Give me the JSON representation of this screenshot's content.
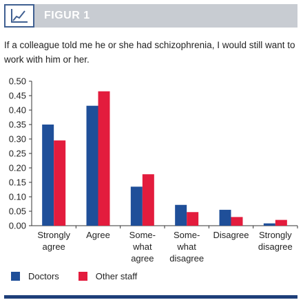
{
  "header": {
    "label": "FIGUR 1",
    "logo_icon": "line-chart-icon"
  },
  "caption": "If a colleague told me he or she had schizophrenia, I would still want to work with him or her.",
  "colors": {
    "doctors": "#1f4f99",
    "other_staff": "#e31c3d",
    "header_bar": "#c8ccd2",
    "rule": "#1e3f7a"
  },
  "chart_data": {
    "type": "bar",
    "categories": [
      [
        "Strongly",
        "agree"
      ],
      [
        "Agree"
      ],
      [
        "Some-",
        "what",
        "agree"
      ],
      [
        "Some-",
        "what",
        "disagree"
      ],
      [
        "Disagree"
      ],
      [
        "Strongly",
        "disagree"
      ]
    ],
    "series": [
      {
        "name": "Doctors",
        "values": [
          0.35,
          0.415,
          0.135,
          0.072,
          0.055,
          0.008
        ]
      },
      {
        "name": "Other staff",
        "values": [
          0.295,
          0.465,
          0.178,
          0.047,
          0.03,
          0.02
        ]
      }
    ],
    "ylim": [
      0,
      0.5
    ],
    "yticks": [
      "0.00",
      "0.05",
      "0.10",
      "0.15",
      "0.20",
      "0.25",
      "0.30",
      "0.35",
      "0.40",
      "0.45",
      "0.50"
    ],
    "legend_position": "bottom-left",
    "grid": false
  }
}
